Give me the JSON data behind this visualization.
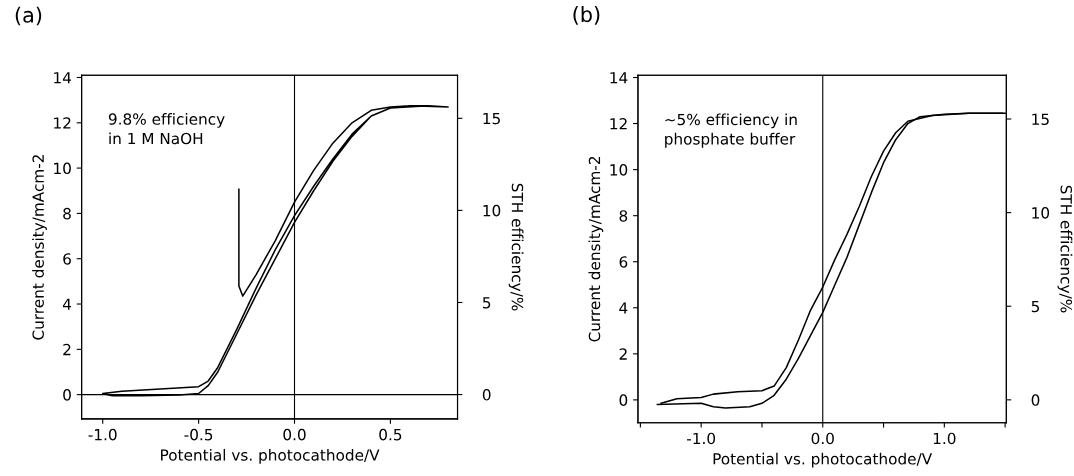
{
  "chart_data": [
    {
      "type": "line",
      "title": "(a)",
      "xlabel": "Potential vs. photocathode/V",
      "ylabel": "Current density/mAcm-2",
      "y2label": "STH efficiency/%",
      "annotations": [
        "9.8% efficiency\nin 1 M NaOH"
      ],
      "xlim": [
        -1.11,
        0.85
      ],
      "xticks": [
        {
          "value": -1.0,
          "label": "-1.0"
        },
        {
          "value": -0.5,
          "label": "-0.5"
        },
        {
          "value": 0.0,
          "label": "0.0"
        },
        {
          "value": 0.5,
          "label": "0.5"
        }
      ],
      "ylim": [
        -1.07,
        14.1
      ],
      "yticks": [
        0,
        2,
        4,
        6,
        8,
        10,
        12,
        14
      ],
      "y2lim": [
        -1.32,
        17.34
      ],
      "y2ticks": [
        0,
        5,
        10,
        15
      ],
      "ref_lines": [
        {
          "axis": "x",
          "value": 0,
          "color": "#000000"
        },
        {
          "axis": "y",
          "value": 0,
          "color": "#000000"
        }
      ],
      "series": [
        {
          "color": "#000000",
          "x": [
            -0.29,
            -0.29,
            -0.27,
            -0.2,
            -0.1,
            0,
            0.1,
            0.2,
            0.3,
            0.4,
            0.5,
            0.6,
            0.7,
            0.8,
            0.7,
            0.5,
            0.4,
            0.3,
            0.2,
            0.1,
            0,
            -0.1,
            -0.2,
            -0.3,
            -0.4,
            -0.45,
            -0.5,
            -0.7,
            -0.9,
            -1.0,
            -0.95,
            -0.8,
            -0.6,
            -0.5,
            -0.45,
            -0.4,
            -0.3,
            -0.2,
            -0.1,
            0,
            0.1,
            0.2,
            0.3,
            0.4,
            0.5,
            0.6,
            0.8
          ],
          "values": [
            9.07,
            4.8,
            4.35,
            5.3,
            6.8,
            8.5,
            9.9,
            11.1,
            12.0,
            12.55,
            12.7,
            12.75,
            12.75,
            12.7,
            12.75,
            12.65,
            12.3,
            11.5,
            10.4,
            9.2,
            7.9,
            6.4,
            4.7,
            2.9,
            1.2,
            0.6,
            0.35,
            0.25,
            0.15,
            0.05,
            -0.05,
            -0.05,
            -0.02,
            0.05,
            0.4,
            1.0,
            2.7,
            4.4,
            6.0,
            7.6,
            9.0,
            10.3,
            11.4,
            12.3,
            12.65,
            12.75,
            12.7
          ]
        }
      ]
    },
    {
      "type": "line",
      "title": "(b)",
      "xlabel": "Potential vs. photocathode/V",
      "ylabel": "Current density/mAcm-2",
      "y2label": "STH efficiency/%",
      "annotations": [
        "~5% efficiency in\nphosphate buffer"
      ],
      "xlim": [
        -1.52,
        1.51
      ],
      "xticks": [
        {
          "value": -1.5,
          "label": null
        },
        {
          "value": -1.0,
          "label": "-1.0"
        },
        {
          "value": -0.5,
          "label": null
        },
        {
          "value": 0.0,
          "label": "0.0"
        },
        {
          "value": 0.5,
          "label": null
        },
        {
          "value": 1.0,
          "label": "1.0"
        },
        {
          "value": 1.5,
          "label": null
        }
      ],
      "ylim": [
        -0.99,
        14.1
      ],
      "yticks": [
        0,
        2,
        4,
        6,
        8,
        10,
        12,
        14
      ],
      "y2lim": [
        -1.22,
        17.34
      ],
      "y2ticks": [
        0,
        5,
        10,
        15
      ],
      "ref_lines": [
        {
          "axis": "x",
          "value": 0,
          "color": "#000000"
        }
      ],
      "series": [
        {
          "color": "#000000",
          "x": [
            -1.33,
            -1.2,
            -1.0,
            -0.9,
            -0.7,
            -0.5,
            -0.4,
            -0.3,
            -0.2,
            -0.1,
            0,
            0.1,
            0.2,
            0.3,
            0.4,
            0.5,
            0.6,
            0.7,
            0.9,
            1.2,
            1.48
          ],
          "values": [
            -0.15,
            0.05,
            0.1,
            0.25,
            0.35,
            0.4,
            0.6,
            1.4,
            2.6,
            3.9,
            4.9,
            6.1,
            7.2,
            8.4,
            9.7,
            10.8,
            11.6,
            12.1,
            12.35,
            12.45,
            12.45
          ]
        },
        {
          "color": "#000000",
          "x": [
            -1.36,
            -1.0,
            -0.9,
            -0.8,
            -0.6,
            -0.5,
            -0.4,
            -0.3,
            -0.2,
            -0.1,
            0,
            0.1,
            0.2,
            0.3,
            0.4,
            0.5,
            0.6,
            0.7,
            0.8,
            1.0,
            1.2,
            1.5
          ],
          "values": [
            -0.2,
            -0.15,
            -0.3,
            -0.35,
            -0.3,
            -0.15,
            0.2,
            0.9,
            1.8,
            2.8,
            3.8,
            5.0,
            6.2,
            7.6,
            9.0,
            10.3,
            11.3,
            12.0,
            12.3,
            12.4,
            12.45,
            12.45
          ]
        }
      ]
    }
  ]
}
